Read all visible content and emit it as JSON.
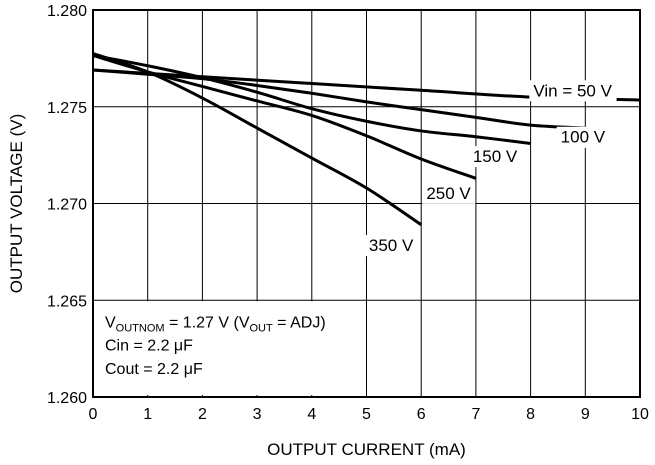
{
  "chart_data": {
    "type": "line",
    "xlabel": "OUTPUT CURRENT (mA)",
    "ylabel": "OUTPUT VOLTAGE (V)",
    "xlim": [
      0,
      10
    ],
    "ylim": [
      1.26,
      1.28
    ],
    "x_ticks": [
      "0",
      "1",
      "2",
      "3",
      "4",
      "5",
      "6",
      "7",
      "8",
      "9",
      "10"
    ],
    "y_ticks": [
      "1.260",
      "1.265",
      "1.270",
      "1.275",
      "1.280"
    ],
    "grid": true,
    "series": [
      {
        "name": "Vin = 50 V",
        "x": [
          0,
          2,
          4,
          6,
          8,
          10
        ],
        "y": [
          1.2769,
          1.27655,
          1.2762,
          1.27585,
          1.2755,
          1.27535
        ]
      },
      {
        "name": "100 V",
        "x": [
          0,
          1,
          2,
          3,
          4,
          5,
          6,
          7,
          8,
          9
        ],
        "y": [
          1.2769,
          1.27668,
          1.27645,
          1.2761,
          1.2757,
          1.27525,
          1.27485,
          1.27445,
          1.27405,
          1.2739
        ]
      },
      {
        "name": "150 V",
        "x": [
          0,
          1,
          2,
          3,
          4,
          5,
          6,
          7,
          8
        ],
        "y": [
          1.27765,
          1.27712,
          1.2765,
          1.27575,
          1.2749,
          1.27425,
          1.27375,
          1.27345,
          1.2731
        ]
      },
      {
        "name": "250 V",
        "x": [
          0,
          1,
          2,
          3,
          4,
          5,
          6,
          7
        ],
        "y": [
          1.27765,
          1.2768,
          1.27605,
          1.2753,
          1.27455,
          1.2735,
          1.2723,
          1.2713
        ]
      },
      {
        "name": "350 V",
        "x": [
          0,
          1,
          2,
          3,
          4,
          5,
          6
        ],
        "y": [
          1.27775,
          1.2768,
          1.27545,
          1.2739,
          1.27235,
          1.2708,
          1.2689
        ]
      }
    ],
    "annotations": {
      "line1": {
        "a": "V",
        "a_sub": "OUTNOM",
        "b": " = 1.27 V (V",
        "b_sub": "OUT",
        "c": " = ADJ)"
      },
      "line2": "Cin = 2.2 μF",
      "line3": "Cout = 2.2 μF"
    }
  }
}
